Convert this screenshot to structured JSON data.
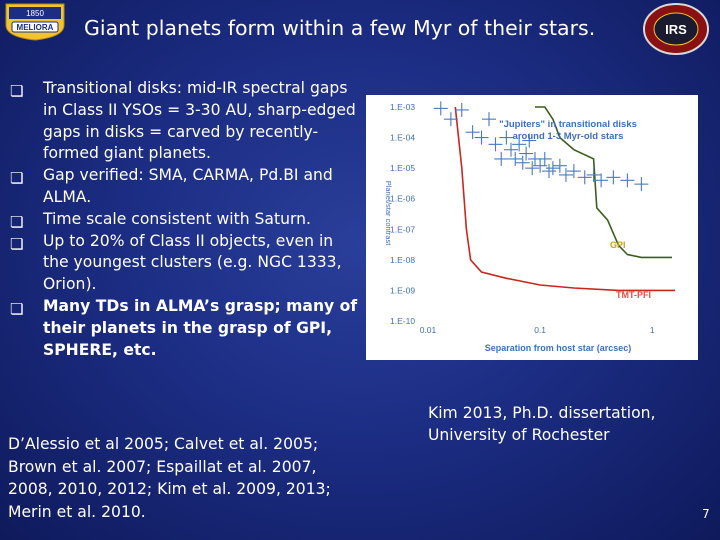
{
  "title": "Giant planets form within a few Myr of their stars.",
  "logo_left": {
    "year": "1850",
    "motto": "MELIORA"
  },
  "logo_right": {
    "text": "IRS"
  },
  "bullets": [
    {
      "text": "Transitional disks: mid-IR spectral gaps in Class II YSOs = 3-30 AU, sharp-edged gaps in disks = carved by recently-formed giant planets.",
      "bold": false
    },
    {
      "text": "Gap verified: SMA, CARMA, Pd.BI and ALMA.",
      "bold": false
    },
    {
      "text": "Time scale consistent with Saturn.",
      "bold": false
    },
    {
      "text": "Up to 20% of Class II objects, even in the youngest clusters (e.g. NGC 1333, Orion).",
      "bold": false
    },
    {
      "text": "Many TDs in ALMA’s grasp; many of their planets in the grasp of GPI, SPHERE, etc.",
      "bold": true
    }
  ],
  "references": "D’Alessio et al 2005; Calvet et al. 2005; Brown et al. 2007; Espaillat et al. 2007, 2008, 2010, 2012; Kim et al. 2009, 2013; Merin et al. 2010.",
  "caption": "Kim 2013, Ph.D. dissertation, University of Rochester",
  "page_number": "7",
  "colors": {
    "background": "#1c2d84",
    "gpi_curve": "#3a5f1a",
    "tmt_curve": "#c8271f",
    "points": "#4a78c0",
    "annotation": "#3f6fbf"
  },
  "chart_data": {
    "type": "scatter",
    "title": "",
    "xlabel": "Separation from host star (arcsec)",
    "ylabel": "Planet/star contrast",
    "xscale": "log",
    "yscale": "log",
    "xlim": [
      0.01,
      2
    ],
    "ylim": [
      1e-10,
      0.001
    ],
    "x_ticks": [
      "0.01",
      "0.1",
      "1"
    ],
    "y_ticks": [
      "1.E-03",
      "1.E-04",
      "1.E-05",
      "1.E-06",
      "1.E-07",
      "1.E-08",
      "1.E-09",
      "1.E-10"
    ],
    "annotation": "\"Jupiters\" in transitional disks around 1-3 Myr-old stars",
    "series": [
      {
        "name": "Jupiters",
        "kind": "points",
        "points": [
          [
            0.013,
            0.0009
          ],
          [
            0.016,
            0.0004
          ],
          [
            0.02,
            0.0008
          ],
          [
            0.025,
            0.00015
          ],
          [
            0.03,
            0.0001
          ],
          [
            0.035,
            0.0004
          ],
          [
            0.04,
            6e-05
          ],
          [
            0.045,
            2e-05
          ],
          [
            0.05,
            0.0001
          ],
          [
            0.055,
            4e-05
          ],
          [
            0.06,
            2e-05
          ],
          [
            0.065,
            6e-05
          ],
          [
            0.07,
            1.5e-05
          ],
          [
            0.075,
            3e-05
          ],
          [
            0.08,
            8e-05
          ],
          [
            0.085,
            1e-05
          ],
          [
            0.09,
            2e-05
          ],
          [
            0.1,
            1.2e-05
          ],
          [
            0.11,
            2e-05
          ],
          [
            0.12,
            8e-06
          ],
          [
            0.13,
            1e-05
          ],
          [
            0.15,
            1.2e-05
          ],
          [
            0.17,
            6e-06
          ],
          [
            0.2,
            8e-06
          ],
          [
            0.25,
            5e-06
          ],
          [
            0.3,
            6e-06
          ],
          [
            0.35,
            4e-06
          ],
          [
            0.45,
            5e-06
          ],
          [
            0.6,
            4e-06
          ],
          [
            0.8,
            3e-06
          ]
        ]
      },
      {
        "name": "GPI",
        "kind": "line",
        "points": [
          [
            0.09,
            0.001
          ],
          [
            0.11,
            0.001
          ],
          [
            0.13,
            0.0004
          ],
          [
            0.15,
            0.0001
          ],
          [
            0.2,
            4e-05
          ],
          [
            0.3,
            2e-05
          ],
          [
            0.32,
            5e-07
          ],
          [
            0.4,
            2e-07
          ],
          [
            0.5,
            3e-08
          ],
          [
            0.6,
            1.5e-08
          ],
          [
            0.8,
            1.2e-08
          ],
          [
            1.0,
            1.2e-08
          ],
          [
            1.5,
            1.2e-08
          ]
        ]
      },
      {
        "name": "TMT-PFI",
        "kind": "line",
        "points": [
          [
            0.0175,
            0.001
          ],
          [
            0.02,
            1e-05
          ],
          [
            0.021,
            1e-06
          ],
          [
            0.022,
            1e-07
          ],
          [
            0.024,
            1e-08
          ],
          [
            0.03,
            4e-09
          ],
          [
            0.05,
            2.5e-09
          ],
          [
            0.1,
            1.5e-09
          ],
          [
            0.2,
            1.2e-09
          ],
          [
            0.5,
            1e-09
          ],
          [
            1.0,
            1e-09
          ],
          [
            1.6,
            1e-09
          ]
        ]
      }
    ]
  }
}
